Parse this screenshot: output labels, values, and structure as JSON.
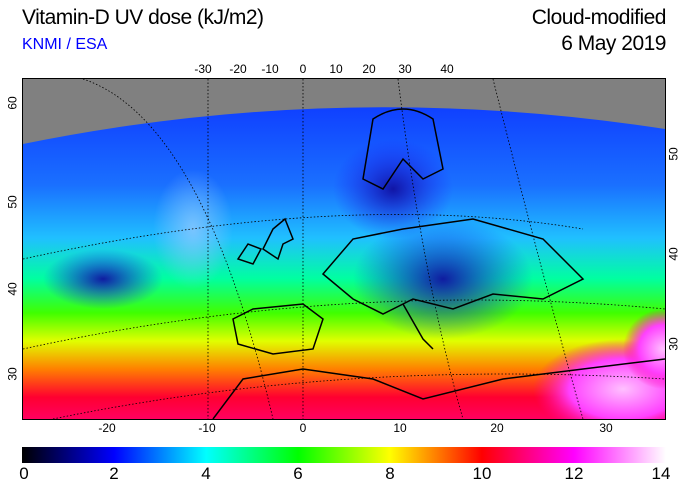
{
  "header": {
    "title": "Vitamin-D UV dose (kJ/m2)",
    "credit": "KNMI / ESA",
    "mode": "Cloud-modified",
    "date": "6 May 2019"
  },
  "map": {
    "top_lon_ticks": [
      "-30",
      "-20",
      "-10",
      "0",
      "10",
      "20",
      "30",
      "40"
    ],
    "bottom_lon_ticks": [
      "-20",
      "-10",
      "0",
      "10",
      "20",
      "30"
    ],
    "left_lat_ticks": [
      "60",
      "50",
      "40",
      "30"
    ],
    "right_lat_ticks": [
      "50",
      "40",
      "30"
    ],
    "no_data_color": "#808080"
  },
  "colorbar": {
    "min": 0,
    "max": 14,
    "ticks": [
      "0",
      "2",
      "4",
      "6",
      "8",
      "10",
      "12",
      "14"
    ],
    "colors": [
      "#000000",
      "#0000ff",
      "#00ffff",
      "#00ff00",
      "#ffff00",
      "#ff0000",
      "#ff00ff",
      "#ffffff"
    ]
  }
}
